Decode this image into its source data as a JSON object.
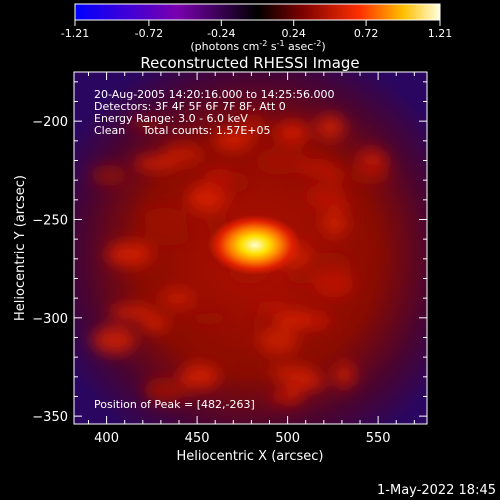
{
  "colorbar": {
    "ticks": [
      "-1.21",
      "-0.72",
      "-0.24",
      "0.24",
      "0.72",
      "1.21"
    ],
    "tick_values": [
      -1.21,
      -0.72,
      -0.24,
      0.24,
      0.72,
      1.21
    ],
    "range": [
      -1.21,
      1.21
    ],
    "units_parts": [
      "(photons cm",
      "-2",
      " s",
      "-1",
      " asec",
      "-2",
      ")"
    ]
  },
  "chart_data": {
    "type": "heatmap",
    "title": "Reconstructed RHESSI Image",
    "xlabel": "Heliocentric X (arcsec)",
    "ylabel": "Heliocentric Y (arcsec)",
    "xlim": [
      382,
      577
    ],
    "ylim": [
      -354,
      -175
    ],
    "x_ticks": [
      400,
      450,
      500,
      550
    ],
    "y_ticks": [
      -200,
      -250,
      -300,
      -350
    ],
    "info_lines": [
      "20-Aug-2005 14:20:16.000 to 14:25:56.000",
      "Detectors: 3F 4F 5F 6F 7F 8F, Att 0",
      "Energy Range: 3.0 - 6.0 keV",
      "Clean     Total counts: 1.57E+05"
    ],
    "peak_label": "Position of Peak = [482,-263]",
    "peak": [
      482,
      -263
    ]
  },
  "footer": {
    "date": "1-May-2022 18:45"
  }
}
